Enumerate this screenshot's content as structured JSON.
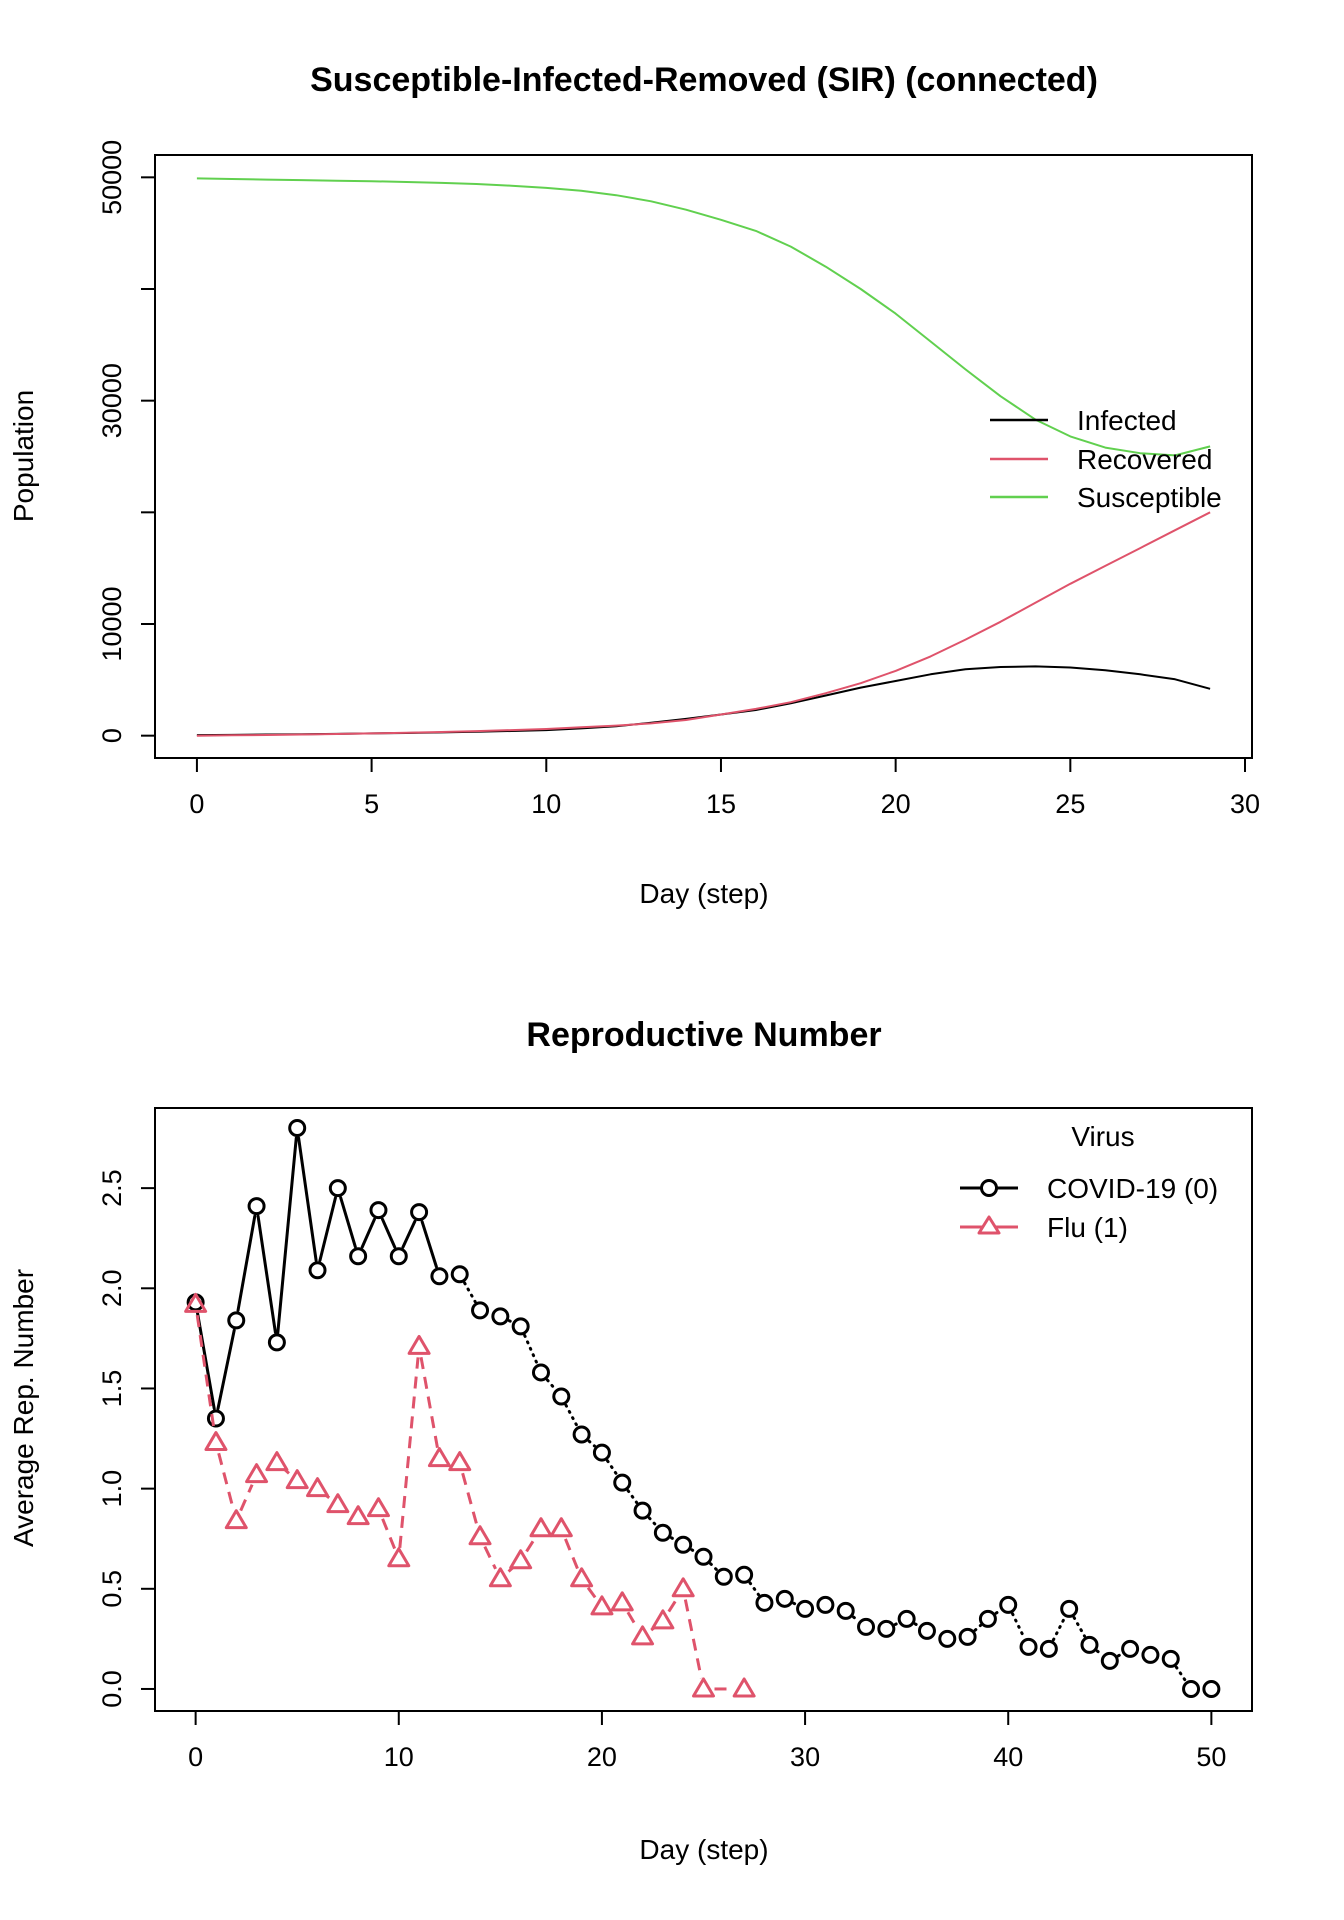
{
  "chart_data": [
    {
      "type": "line",
      "title": "Susceptible-Infected-Removed (SIR) (connected)",
      "xlabel": "Day (step)",
      "ylabel": "Population",
      "xlim": [
        -1.2,
        30.2
      ],
      "ylim": [
        -2000,
        52000
      ],
      "xticks": [
        0,
        5,
        10,
        15,
        20,
        25,
        30
      ],
      "yticks": [
        0,
        10000,
        20000,
        30000,
        40000,
        50000
      ],
      "ytick_labels": [
        "0",
        "10000",
        "",
        "30000",
        "",
        "50000"
      ],
      "legend_position": "right",
      "x": [
        0,
        1,
        2,
        3,
        4,
        5,
        6,
        7,
        8,
        9,
        10,
        11,
        12,
        13,
        14,
        15,
        16,
        17,
        18,
        19,
        20,
        21,
        22,
        23,
        24,
        25,
        26,
        27,
        28,
        29
      ],
      "series": [
        {
          "name": "Infected",
          "color": "#000000",
          "values": [
            50,
            70,
            100,
            130,
            160,
            200,
            240,
            290,
            350,
            420,
            500,
            650,
            850,
            1150,
            1500,
            1900,
            2300,
            2900,
            3600,
            4300,
            4900,
            5500,
            5950,
            6150,
            6200,
            6100,
            5850,
            5500,
            5050,
            4200
          ]
        },
        {
          "name": "Recovered",
          "color": "#DF536B",
          "values": [
            0,
            30,
            60,
            100,
            150,
            200,
            260,
            330,
            410,
            500,
            600,
            750,
            900,
            1100,
            1400,
            1900,
            2400,
            3000,
            3800,
            4700,
            5800,
            7100,
            8600,
            10200,
            11900,
            13600,
            15200,
            16800,
            18400,
            20000
          ]
        },
        {
          "name": "Susceptible",
          "color": "#61D04F",
          "values": [
            49900,
            49850,
            49800,
            49750,
            49700,
            49650,
            49580,
            49500,
            49400,
            49250,
            49050,
            48800,
            48400,
            47850,
            47100,
            46200,
            45200,
            43800,
            42000,
            40000,
            37800,
            35300,
            32800,
            30400,
            28300,
            26800,
            25800,
            25300,
            25100,
            25900
          ]
        }
      ]
    },
    {
      "type": "line",
      "title": "Reproductive Number",
      "xlabel": "Day (step)",
      "ylabel": "Average Rep. Number",
      "xlim": [
        -2,
        52
      ],
      "ylim": [
        -0.11,
        2.9
      ],
      "xticks": [
        0,
        10,
        20,
        30,
        40,
        50
      ],
      "yticks": [
        0.0,
        0.5,
        1.0,
        1.5,
        2.0,
        2.5
      ],
      "ytick_labels": [
        "0.0",
        "0.5",
        "1.0",
        "1.5",
        "2.0",
        "2.5"
      ],
      "legend_title": "Virus",
      "legend_position": "top-right",
      "series": [
        {
          "name": "COVID-19 (0)",
          "color": "#000000",
          "marker": "circle",
          "linestyle": "solid-to-dotted",
          "x": [
            0,
            1,
            2,
            3,
            4,
            5,
            6,
            7,
            8,
            9,
            10,
            11,
            12,
            13,
            14,
            15,
            16,
            17,
            18,
            19,
            20,
            21,
            22,
            23,
            24,
            25,
            26,
            27,
            28,
            29,
            30,
            31,
            32,
            33,
            34,
            35,
            36,
            37,
            38,
            39,
            40,
            41,
            42,
            43,
            44,
            45,
            46,
            47,
            48,
            49,
            50
          ],
          "values": [
            1.93,
            1.35,
            1.84,
            2.41,
            1.73,
            2.8,
            2.09,
            2.5,
            2.16,
            2.39,
            2.16,
            2.38,
            2.06,
            2.07,
            1.89,
            1.86,
            1.81,
            1.58,
            1.46,
            1.27,
            1.18,
            1.03,
            0.89,
            0.78,
            0.72,
            0.66,
            0.56,
            0.57,
            0.43,
            0.45,
            0.4,
            0.42,
            0.39,
            0.31,
            0.3,
            0.35,
            0.29,
            0.25,
            0.26,
            0.35,
            0.42,
            0.21,
            0.2,
            0.4,
            0.22,
            0.14,
            0.2,
            0.17,
            0.15,
            0.0,
            0.0
          ]
        },
        {
          "name": "Flu (1)",
          "color": "#DF536B",
          "marker": "triangle",
          "linestyle": "dashed",
          "x": [
            0,
            1,
            2,
            3,
            4,
            5,
            6,
            7,
            8,
            9,
            10,
            11,
            12,
            13,
            14,
            15,
            16,
            17,
            18,
            19,
            20,
            21,
            22,
            23,
            24,
            25,
            27
          ],
          "values": [
            1.92,
            1.23,
            0.84,
            1.07,
            1.13,
            1.04,
            1.0,
            0.92,
            0.86,
            0.9,
            0.65,
            1.71,
            1.15,
            1.13,
            0.76,
            0.55,
            0.64,
            0.8,
            0.8,
            0.55,
            0.41,
            0.43,
            0.26,
            0.34,
            0.5,
            0.0,
            0.0
          ]
        }
      ]
    }
  ]
}
